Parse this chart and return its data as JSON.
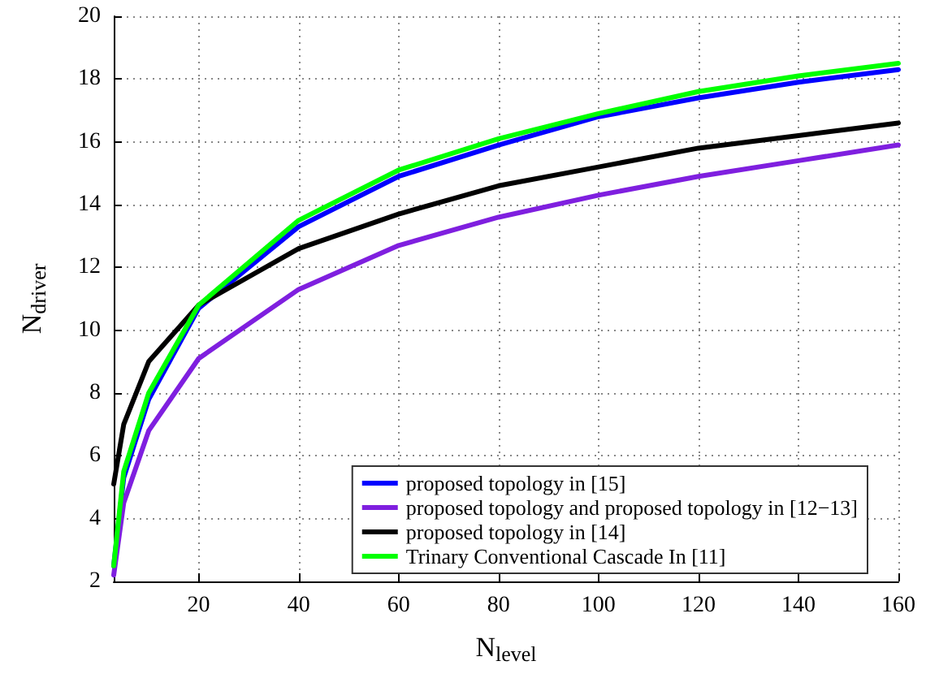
{
  "chart_data": {
    "type": "line",
    "xlabel": "N$_{level}$",
    "ylabel": "N$_{driver}$",
    "x": [
      3,
      5,
      10,
      20,
      40,
      60,
      80,
      100,
      120,
      140,
      160
    ],
    "series": [
      {
        "name": "proposed topology in [15]",
        "color": "#0000ff",
        "values": [
          2.5,
          5.3,
          7.8,
          10.7,
          13.3,
          14.9,
          15.9,
          16.8,
          17.4,
          17.9,
          18.3
        ]
      },
      {
        "name": "proposed topology and proposed topology in [12−13]",
        "color": "#7f1fdf",
        "values": [
          2.2,
          4.5,
          6.8,
          9.1,
          11.3,
          12.7,
          13.6,
          14.3,
          14.9,
          15.4,
          15.9
        ]
      },
      {
        "name": "proposed topology in [14]",
        "color": "#000000",
        "values": [
          5.1,
          7.0,
          9.0,
          10.8,
          12.6,
          13.7,
          14.6,
          15.2,
          15.8,
          16.2,
          16.6
        ]
      },
      {
        "name": "Trinary Conventional Cascade In [11]",
        "color": "#00ff00",
        "values": [
          2.5,
          5.5,
          8.0,
          10.8,
          13.5,
          15.1,
          16.1,
          16.9,
          17.6,
          18.1,
          18.5
        ]
      }
    ],
    "xlim": [
      3,
      160
    ],
    "xticks": [
      20,
      40,
      60,
      80,
      100,
      120,
      140,
      160
    ],
    "ylim": [
      2,
      20
    ],
    "yticks": [
      2,
      4,
      6,
      8,
      10,
      12,
      14,
      16,
      18,
      20
    ],
    "grid": true,
    "legend": "bottom right",
    "marker": "none",
    "line_style": "solid"
  }
}
